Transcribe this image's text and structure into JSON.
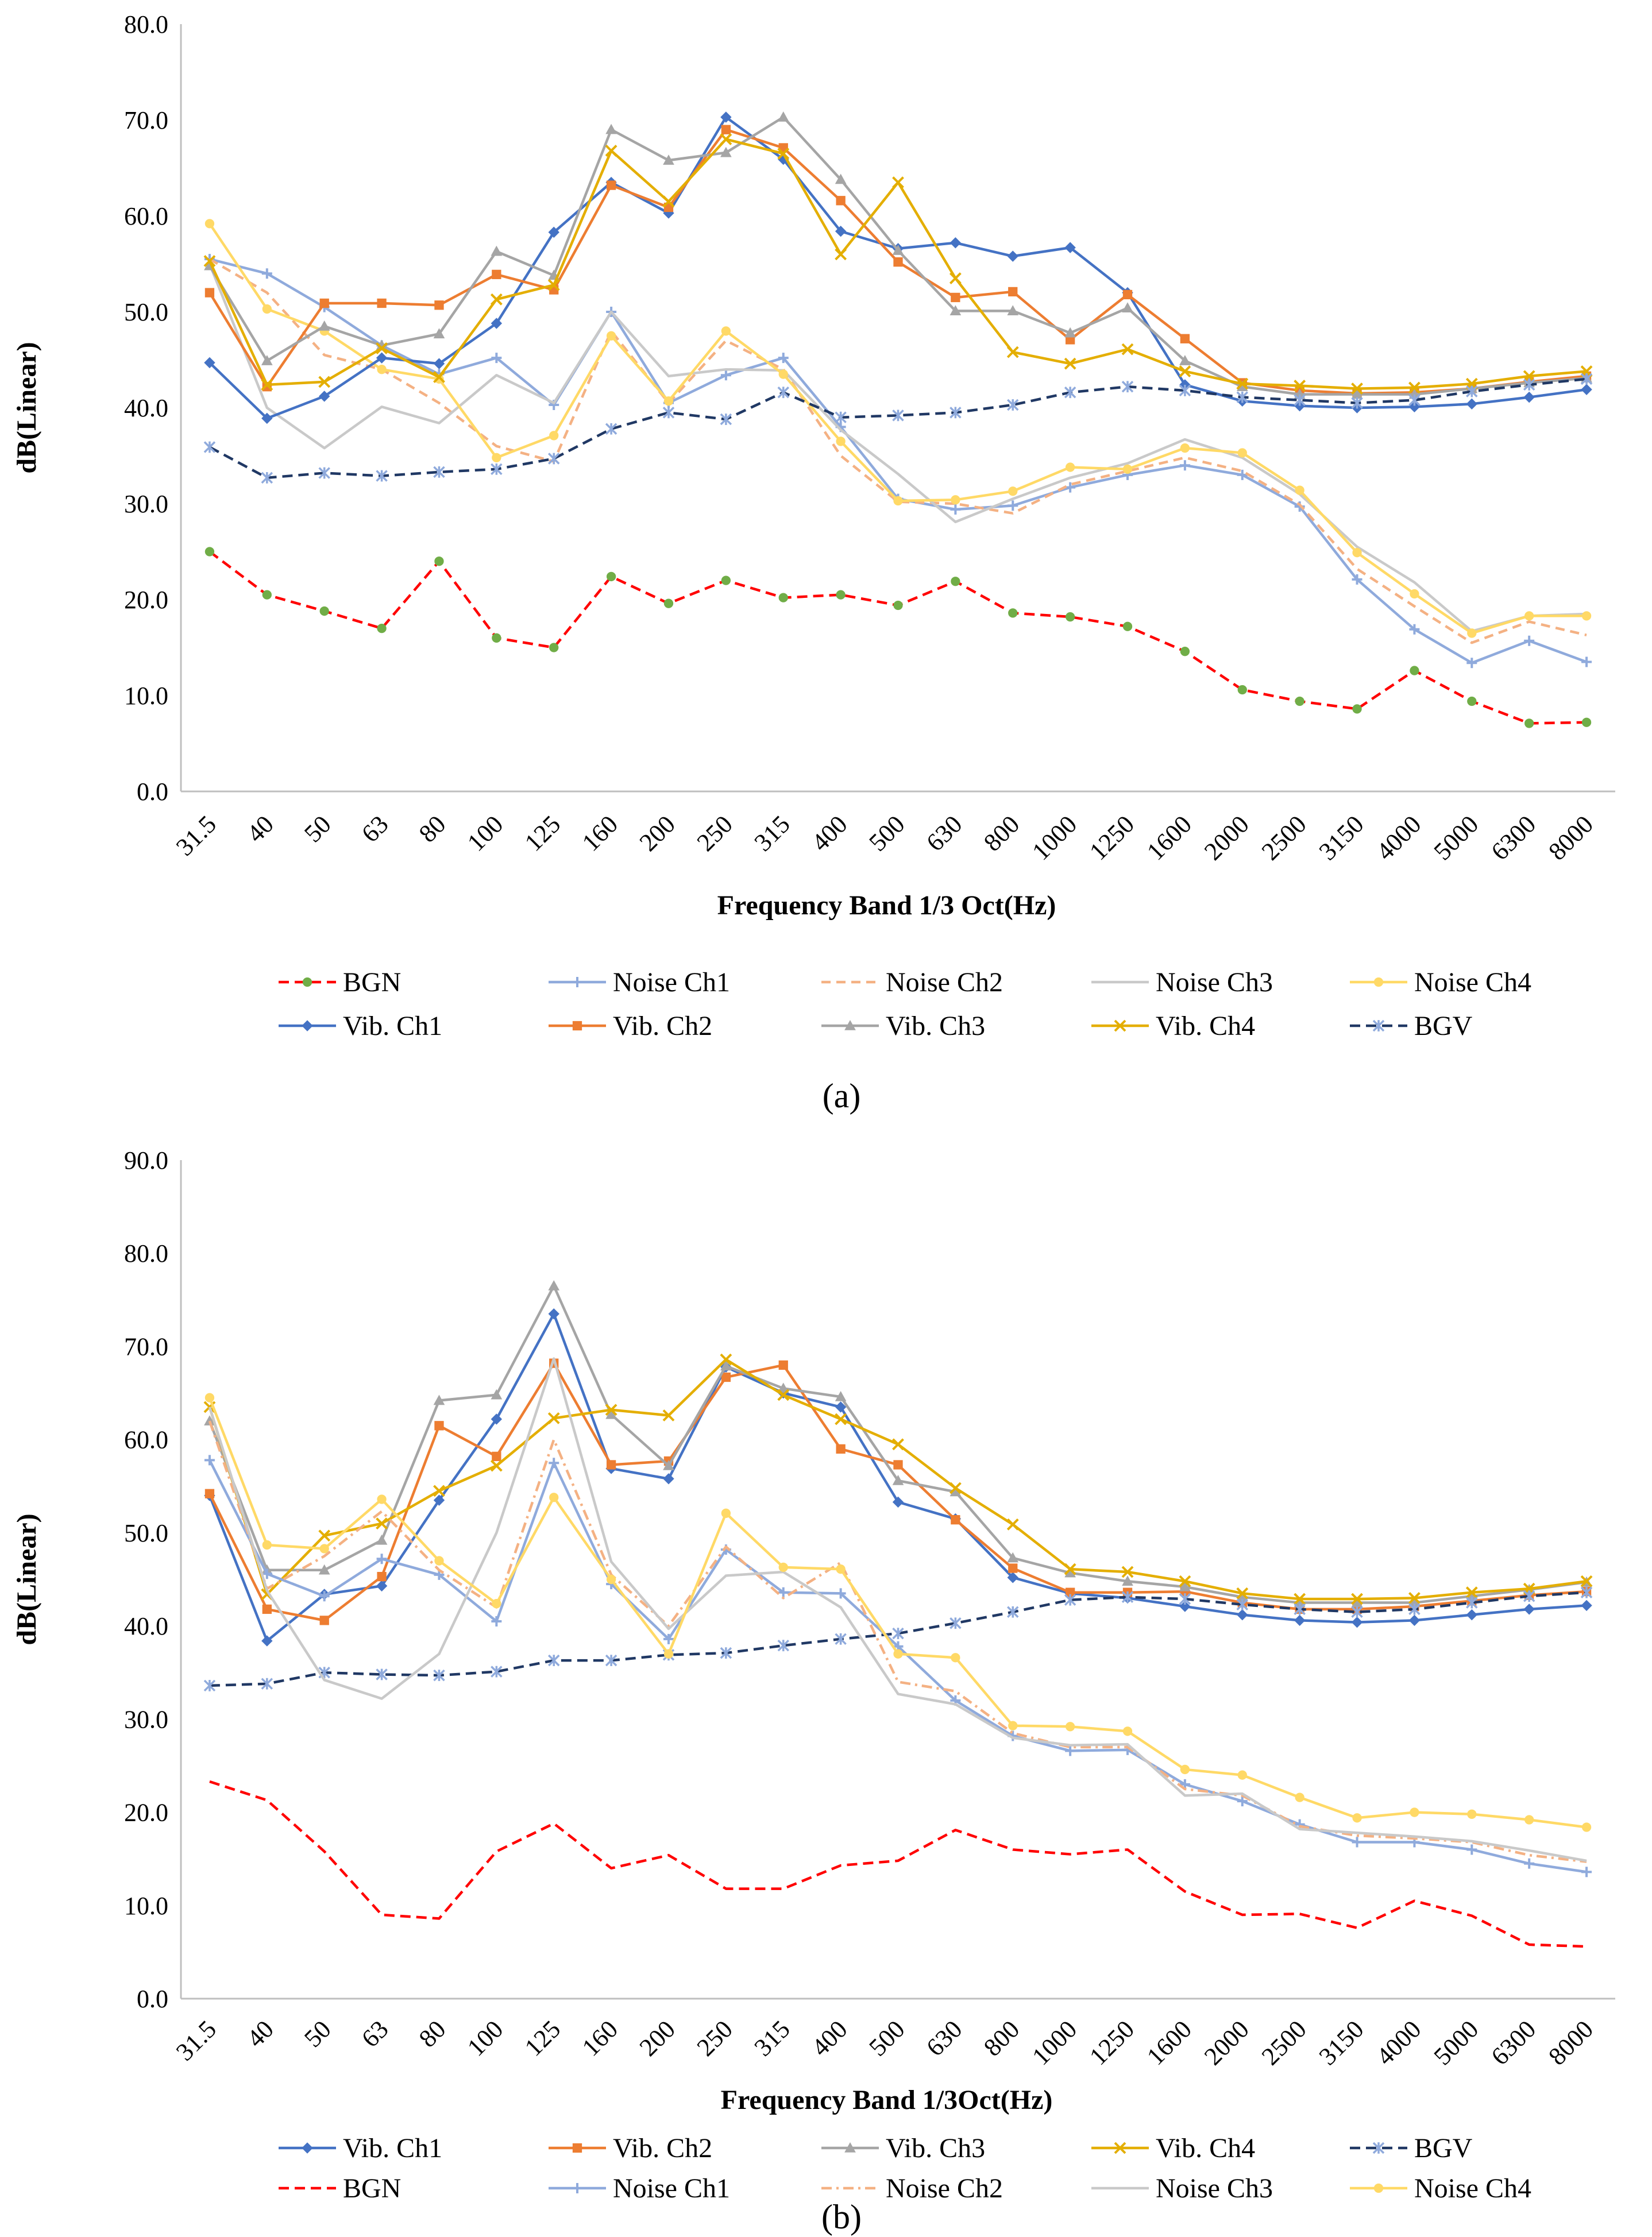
{
  "chart_data": [
    {
      "type": "line",
      "panel_label": "(a)",
      "xlabel": "Frequency Band 1/3 Oct(Hz)",
      "ylabel": "dB(Linear)",
      "ylim": [
        0,
        80
      ],
      "yticks": [
        "0.0",
        "10.0",
        "20.0",
        "30.0",
        "40.0",
        "50.0",
        "60.0",
        "70.0",
        "80.0"
      ],
      "grid": false,
      "categories": [
        "31.5",
        "40",
        "50",
        "63",
        "80",
        "100",
        "125",
        "160",
        "200",
        "250",
        "315",
        "400",
        "500",
        "630",
        "800",
        "1000",
        "1250",
        "1600",
        "2000",
        "2500",
        "3150",
        "4000",
        "5000",
        "6300",
        "8000"
      ],
      "legend_order": [
        "BGN",
        "Noise Ch1",
        "Noise Ch2",
        "Noise Ch3",
        "Noise Ch4",
        "Vib. Ch1",
        "Vib. Ch2",
        "Vib. Ch3",
        "Vib. Ch4",
        "BGV"
      ],
      "series": [
        {
          "name": "BGN",
          "color": "#ff0000",
          "dash": "18,10",
          "marker": "circle",
          "marker_color": "#70ad47",
          "values": [
            25,
            20.5,
            18.8,
            17,
            24,
            16,
            15,
            22.4,
            19.6,
            22,
            20.2,
            20.5,
            19.4,
            21.9,
            18.6,
            18.2,
            17.2,
            14.6,
            10.6,
            9.4,
            8.6,
            12.6,
            9.4,
            7.1,
            7.2
          ]
        },
        {
          "name": "Noise Ch1",
          "color": "#8faadc",
          "dash": "",
          "marker": "plus",
          "marker_color": "#8faadc",
          "values": [
            55.5,
            54,
            50.5,
            46.5,
            43.5,
            45.2,
            40.3,
            50,
            40.5,
            43.4,
            45.2,
            38,
            30.5,
            29.4,
            29.8,
            31.7,
            33,
            34,
            33,
            29.7,
            22.1,
            16.9,
            13.4,
            15.7,
            13.5
          ]
        },
        {
          "name": "Noise Ch2",
          "color": "#f4b183",
          "dash": "16,10",
          "marker": "none",
          "marker_color": "#f4b183",
          "values": [
            55.5,
            52,
            45.5,
            44,
            40.5,
            36,
            34.4,
            48,
            40.5,
            47,
            44,
            35,
            30.2,
            30,
            29,
            32,
            33.4,
            34.8,
            33.4,
            29.9,
            23.2,
            19.3,
            15.5,
            17.7,
            16.3
          ]
        },
        {
          "name": "Noise Ch3",
          "color": "#c9c9c9",
          "dash": "",
          "marker": "none",
          "marker_color": "#c9c9c9",
          "values": [
            55,
            40,
            35.8,
            40.1,
            38.4,
            43.4,
            40.5,
            50,
            43.3,
            44,
            43.9,
            37.7,
            33.1,
            28.1,
            30.5,
            32.7,
            34.2,
            36.7,
            34.8,
            31,
            25.5,
            21.8,
            16.7,
            18.3,
            18.5
          ]
        },
        {
          "name": "Noise Ch4",
          "color": "#ffd966",
          "dash": "",
          "marker": "circle",
          "marker_color": "#ffd966",
          "values": [
            59.2,
            50.3,
            48,
            44,
            43,
            34.8,
            37.1,
            47.5,
            40.7,
            48,
            43.5,
            36.5,
            30.3,
            30.4,
            31.3,
            33.8,
            33.6,
            35.8,
            35.3,
            31.4,
            24.9,
            20.6,
            16.5,
            18.3,
            18.3
          ]
        },
        {
          "name": "Vib. Ch1",
          "color": "#4472c4",
          "dash": "",
          "marker": "diamond",
          "marker_color": "#4472c4",
          "values": [
            44.7,
            38.9,
            41.2,
            45.2,
            44.6,
            48.8,
            58.3,
            63.5,
            60.3,
            70.3,
            65.9,
            58.4,
            56.6,
            57.2,
            55.8,
            56.7,
            52,
            42.4,
            40.7,
            40.2,
            40,
            40.1,
            40.4,
            41.1,
            41.9
          ]
        },
        {
          "name": "Vib. Ch2",
          "color": "#ed7d31",
          "dash": "",
          "marker": "square",
          "marker_color": "#ed7d31",
          "values": [
            52,
            42.2,
            50.9,
            50.9,
            50.7,
            53.9,
            52.3,
            63.2,
            60.9,
            69,
            67.1,
            61.6,
            55.2,
            51.5,
            52.1,
            47.1,
            51.8,
            47.2,
            42.6,
            41.8,
            41.5,
            41.6,
            42,
            42.7,
            43.3
          ]
        },
        {
          "name": "Vib. Ch3",
          "color": "#a5a5a5",
          "dash": "",
          "marker": "triangle",
          "marker_color": "#a5a5a5",
          "values": [
            54.8,
            44.9,
            48.5,
            46.5,
            47.7,
            56.3,
            53.8,
            69,
            65.8,
            66.6,
            70.3,
            63.8,
            56.4,
            50.1,
            50.1,
            47.8,
            50.4,
            44.9,
            42.2,
            41.4,
            41.4,
            41.4,
            42,
            42.6,
            43.1
          ]
        },
        {
          "name": "Vib. Ch4",
          "color": "#e4ae00",
          "dash": "",
          "marker": "x",
          "marker_color": "#e4ae00",
          "values": [
            55.3,
            42.4,
            42.7,
            46.2,
            43.2,
            51.3,
            52.8,
            66.8,
            61.5,
            68,
            66.5,
            56,
            63.5,
            53.5,
            45.8,
            44.6,
            46.1,
            43.8,
            42.5,
            42.3,
            42,
            42.1,
            42.5,
            43.3,
            43.8
          ]
        },
        {
          "name": "BGV",
          "color": "#203864",
          "dash": "18,10",
          "marker": "star",
          "marker_color": "#8faadc",
          "values": [
            35.9,
            32.7,
            33.2,
            32.9,
            33.3,
            33.6,
            34.7,
            37.8,
            39.5,
            38.8,
            41.6,
            39,
            39.2,
            39.5,
            40.3,
            41.6,
            42.2,
            41.8,
            41.1,
            40.8,
            40.5,
            40.8,
            41.7,
            42.4,
            43
          ]
        }
      ]
    },
    {
      "type": "line",
      "panel_label": "(b)",
      "xlabel": "Frequency Band 1/3Oct(Hz)",
      "ylabel": "dB(Linear)",
      "ylim": [
        0,
        90
      ],
      "yticks": [
        "0.0",
        "10.0",
        "20.0",
        "30.0",
        "40.0",
        "50.0",
        "60.0",
        "70.0",
        "80.0",
        "90.0"
      ],
      "grid": false,
      "categories": [
        "31.5",
        "40",
        "50",
        "63",
        "80",
        "100",
        "125",
        "160",
        "200",
        "250",
        "315",
        "400",
        "500",
        "630",
        "800",
        "1000",
        "1250",
        "1600",
        "2000",
        "2500",
        "3150",
        "4000",
        "5000",
        "6300",
        "8000"
      ],
      "legend_order": [
        "Vib. Ch1",
        "Vib. Ch2",
        "Vib. Ch3",
        "Vib. Ch4",
        "BGV",
        "BGN",
        "Noise Ch1",
        "Noise Ch2",
        "Noise Ch3",
        "Noise Ch4"
      ],
      "series": [
        {
          "name": "Vib. Ch1",
          "color": "#4472c4",
          "dash": "",
          "marker": "diamond",
          "marker_color": "#4472c4",
          "values": [
            54,
            38.4,
            43.4,
            44.3,
            53.5,
            62.2,
            73.5,
            56.9,
            55.8,
            67.8,
            65,
            63.5,
            53.3,
            51.5,
            45.2,
            43.5,
            43,
            42.1,
            41.2,
            40.6,
            40.4,
            40.6,
            41.2,
            41.8,
            42.2
          ]
        },
        {
          "name": "Vib. Ch2",
          "color": "#ed7d31",
          "dash": "",
          "marker": "square",
          "marker_color": "#ed7d31",
          "values": [
            54.2,
            41.8,
            40.6,
            45.3,
            61.5,
            58.2,
            68.2,
            57.3,
            57.7,
            66.7,
            68,
            59,
            57.3,
            51.4,
            46.2,
            43.6,
            43.6,
            43.7,
            42.5,
            41.8,
            41.8,
            42.1,
            42.7,
            43.3,
            43.7
          ]
        },
        {
          "name": "Vib. Ch3",
          "color": "#a5a5a5",
          "dash": "",
          "marker": "triangle",
          "marker_color": "#a5a5a5",
          "values": [
            62,
            46,
            46,
            49.2,
            64.2,
            64.8,
            76.5,
            62.7,
            57.2,
            67.9,
            65.5,
            64.6,
            55.6,
            54.4,
            47.3,
            45.7,
            44.8,
            44.2,
            43.1,
            42.5,
            42.5,
            42.5,
            43.2,
            43.9,
            44.7
          ]
        },
        {
          "name": "Vib. Ch4",
          "color": "#e4ae00",
          "dash": "",
          "marker": "x",
          "marker_color": "#e4ae00",
          "values": [
            63.5,
            43.4,
            49.7,
            51,
            54.5,
            57.2,
            62.3,
            63.2,
            62.6,
            68.6,
            64.8,
            62.2,
            59.5,
            54.8,
            50.9,
            46.1,
            45.8,
            44.8,
            43.5,
            42.9,
            42.9,
            43,
            43.6,
            44,
            44.8
          ]
        },
        {
          "name": "BGV",
          "color": "#203864",
          "dash": "18,10",
          "marker": "star",
          "marker_color": "#8faadc",
          "values": [
            33.6,
            33.8,
            35,
            34.8,
            34.7,
            35.1,
            36.3,
            36.3,
            36.9,
            37.1,
            37.9,
            38.6,
            39.2,
            40.3,
            41.5,
            42.8,
            43.1,
            42.9,
            42.3,
            41.8,
            41.5,
            41.8,
            42.5,
            43.2,
            43.6
          ]
        },
        {
          "name": "BGN",
          "color": "#ff0000",
          "dash": "18,10",
          "marker": "none",
          "marker_color": "#ff0000",
          "values": [
            23.3,
            21.3,
            15.8,
            9,
            8.6,
            15.8,
            18.8,
            14,
            15.4,
            11.8,
            11.8,
            14.3,
            14.8,
            18.1,
            16,
            15.5,
            16,
            11.5,
            9,
            9.1,
            7.6,
            10.5,
            8.9,
            5.8,
            5.6
          ]
        },
        {
          "name": "Noise Ch1",
          "color": "#8faadc",
          "dash": "",
          "marker": "plus",
          "marker_color": "#8faadc",
          "values": [
            57.8,
            45.6,
            43.2,
            47.2,
            45.5,
            40.5,
            57.5,
            44.5,
            38.6,
            48.2,
            43.6,
            43.5,
            37.8,
            32,
            28.2,
            26.6,
            26.7,
            23,
            21.2,
            18.7,
            16.8,
            16.8,
            16,
            14.5,
            13.6
          ]
        },
        {
          "name": "Noise Ch2",
          "color": "#f4b183",
          "dash": "18,8,4,8",
          "marker": "none",
          "marker_color": "#f4b183",
          "values": [
            62,
            44,
            47.5,
            52.3,
            46,
            42,
            60,
            45.5,
            40,
            48.5,
            43,
            46.8,
            34,
            33,
            28.5,
            27,
            27,
            22.5,
            21.8,
            18.5,
            17.5,
            17.2,
            16.8,
            15.4,
            14.7
          ]
        },
        {
          "name": "Noise Ch3",
          "color": "#c9c9c9",
          "dash": "",
          "marker": "none",
          "marker_color": "#c9c9c9",
          "values": [
            63.5,
            43.8,
            34.2,
            32.2,
            37,
            50,
            68.7,
            46.9,
            39.7,
            45.4,
            45.8,
            42,
            32.7,
            31.6,
            28,
            27.2,
            27.3,
            21.8,
            22,
            18.2,
            17.8,
            17.4,
            16.9,
            15.9,
            14.8
          ]
        },
        {
          "name": "Noise Ch4",
          "color": "#ffd966",
          "dash": "",
          "marker": "circle",
          "marker_color": "#ffd966",
          "values": [
            64.5,
            48.7,
            48.3,
            53.6,
            47,
            42.4,
            53.8,
            45,
            37,
            52.1,
            46.3,
            46.1,
            37,
            36.6,
            29.3,
            29.2,
            28.7,
            24.6,
            24,
            21.6,
            19.4,
            20,
            19.8,
            19.2,
            18.4
          ]
        }
      ]
    }
  ]
}
